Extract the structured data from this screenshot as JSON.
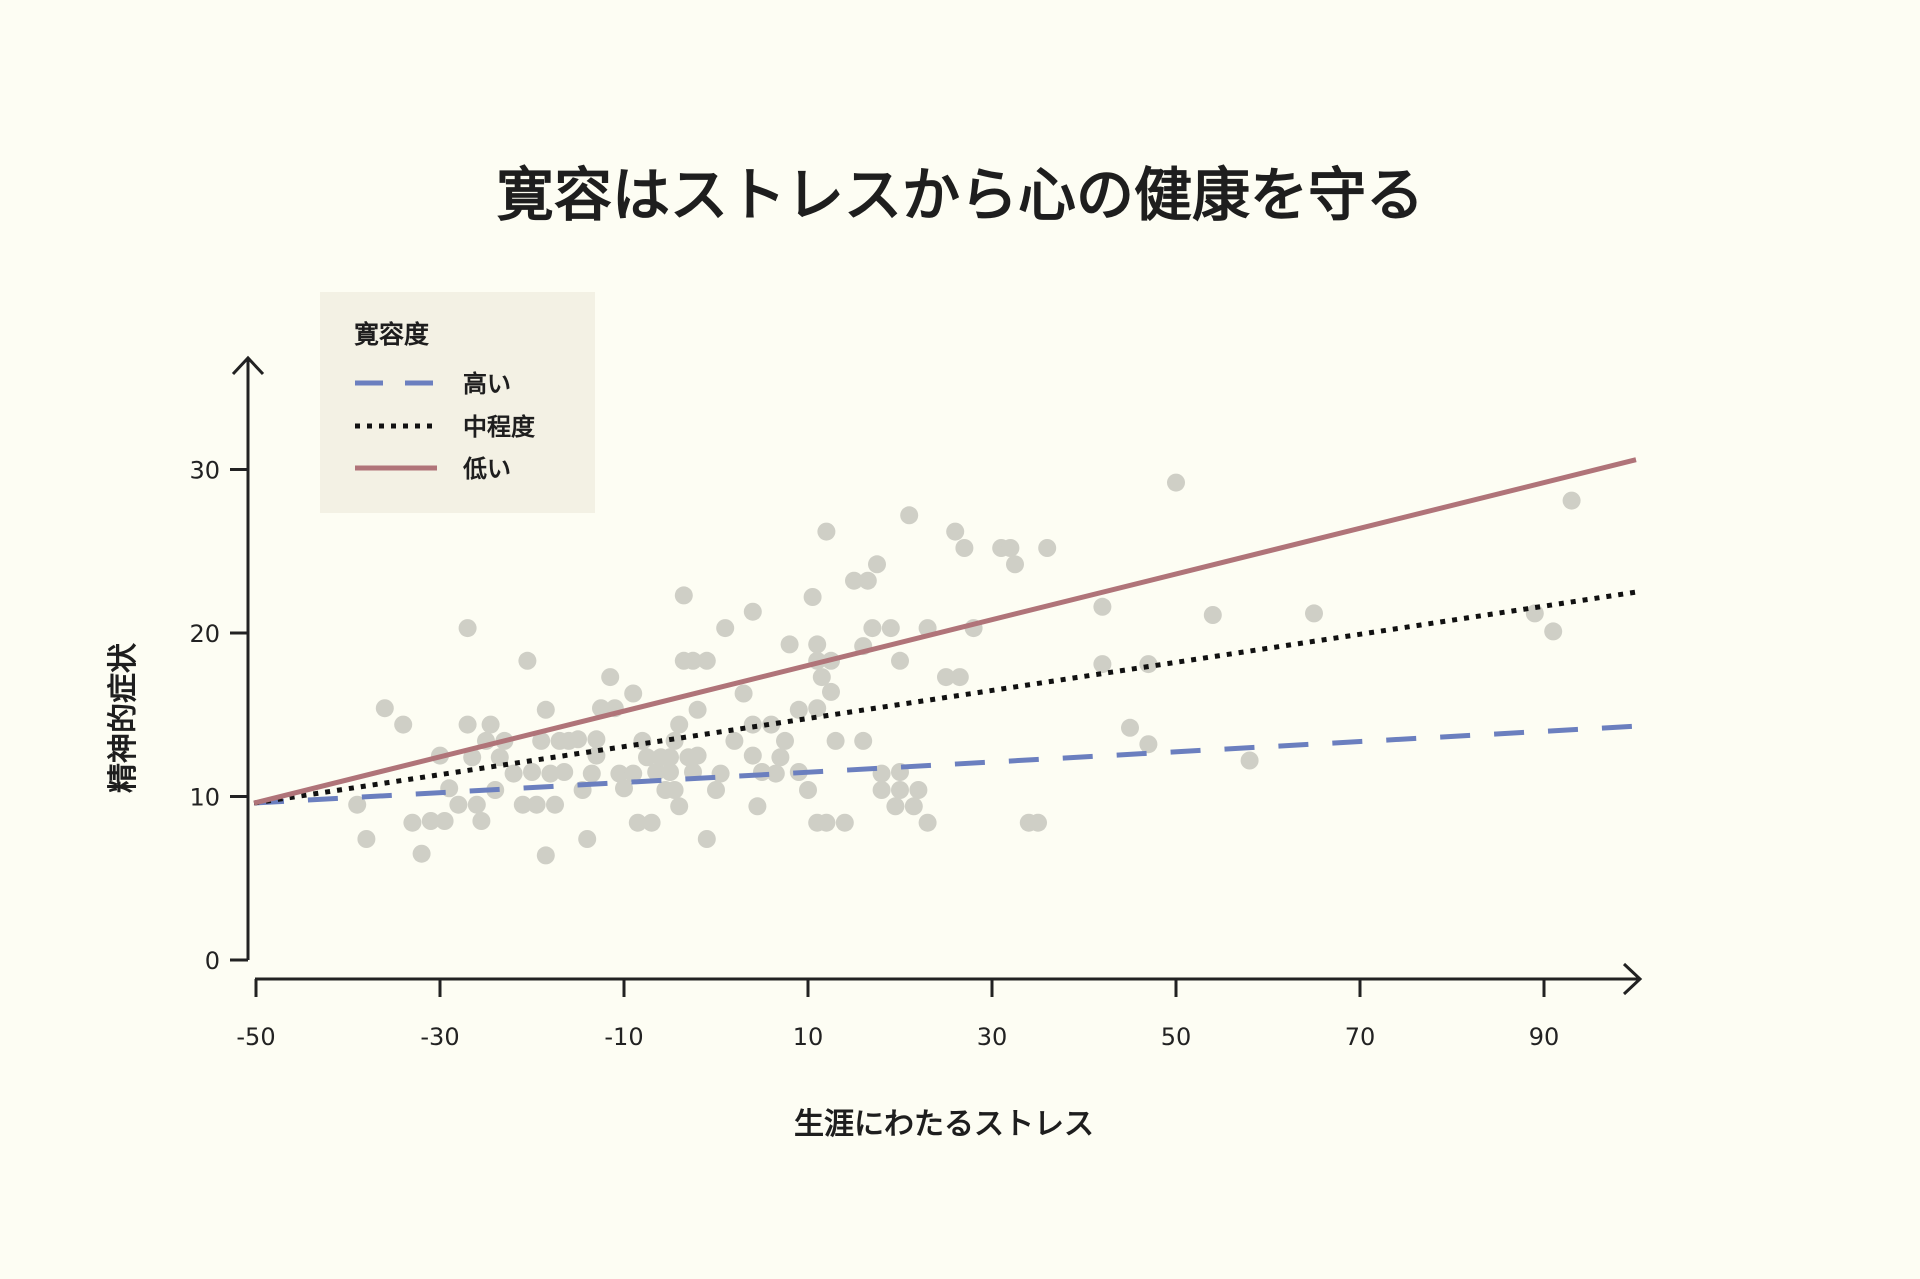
{
  "chart_data": {
    "type": "scatter",
    "title": "寛容はストレスから心の健康を守る",
    "xlabel": "生涯にわたるストレス",
    "ylabel": "精神的症状",
    "xlim": [
      -50,
      100
    ],
    "ylim": [
      0,
      36
    ],
    "xticks": [
      "-50",
      "-30",
      "-10",
      "10",
      "30",
      "50",
      "70",
      "90"
    ],
    "yticks": [
      "0",
      "10",
      "20",
      "30"
    ],
    "grid": false,
    "legend": {
      "title": "寛容度",
      "placement": "top-left",
      "entries": [
        {
          "label": "高い",
          "style": "dashed",
          "color": "#6b7fbf"
        },
        {
          "label": "中程度",
          "style": "dotted",
          "color": "#111111"
        },
        {
          "label": "低い",
          "style": "solid",
          "color": "#b07479"
        }
      ]
    },
    "point_color": "#cfcfc6",
    "lines": [
      {
        "name": "高い",
        "x": [
          -50,
          100
        ],
        "y": [
          9.6,
          14.3
        ],
        "style": "dashed",
        "color": "#6b7fbf"
      },
      {
        "name": "中程度",
        "x": [
          -50,
          100
        ],
        "y": [
          9.6,
          22.5
        ],
        "style": "dotted",
        "color": "#111111"
      },
      {
        "name": "低い",
        "x": [
          -50,
          100
        ],
        "y": [
          9.6,
          30.6
        ],
        "style": "solid",
        "color": "#b07479"
      }
    ],
    "points": [
      [
        -39,
        9.5
      ],
      [
        -38,
        7.4
      ],
      [
        -36,
        15.4
      ],
      [
        -34,
        14.4
      ],
      [
        -33,
        8.4
      ],
      [
        -32,
        6.5
      ],
      [
        -31,
        8.5
      ],
      [
        -30,
        12.5
      ],
      [
        -29.5,
        8.5
      ],
      [
        -29,
        10.5
      ],
      [
        -28,
        9.5
      ],
      [
        -27,
        14.4
      ],
      [
        -27,
        20.3
      ],
      [
        -26.5,
        12.4
      ],
      [
        -26,
        9.5
      ],
      [
        -25.5,
        8.5
      ],
      [
        -25,
        13.4
      ],
      [
        -24.5,
        14.4
      ],
      [
        -24,
        10.4
      ],
      [
        -23.5,
        12.4
      ],
      [
        -23,
        13.4
      ],
      [
        -22,
        11.4
      ],
      [
        -21,
        9.5
      ],
      [
        -20.5,
        18.3
      ],
      [
        -20,
        11.5
      ],
      [
        -19.5,
        9.5
      ],
      [
        -19,
        13.4
      ],
      [
        -18.5,
        15.3
      ],
      [
        -18.5,
        6.4
      ],
      [
        -18,
        11.4
      ],
      [
        -17.5,
        9.5
      ],
      [
        -17,
        13.4
      ],
      [
        -16.5,
        11.5
      ],
      [
        -16,
        13.4
      ],
      [
        -15,
        13.5
      ],
      [
        -14.5,
        10.4
      ],
      [
        -14,
        7.4
      ],
      [
        -13.5,
        11.4
      ],
      [
        -13,
        12.5
      ],
      [
        -13,
        13.5
      ],
      [
        -12.5,
        15.4
      ],
      [
        -11.5,
        17.3
      ],
      [
        -11,
        15.4
      ],
      [
        -10.5,
        11.4
      ],
      [
        -10,
        10.5
      ],
      [
        -9,
        16.3
      ],
      [
        -9,
        11.4
      ],
      [
        -8.5,
        8.4
      ],
      [
        -8,
        13.4
      ],
      [
        -7.5,
        12.4
      ],
      [
        -7,
        8.4
      ],
      [
        -6.5,
        11.5
      ],
      [
        -6,
        12.4
      ],
      [
        -5.5,
        10.4
      ],
      [
        -5,
        12.4
      ],
      [
        -5,
        11.5
      ],
      [
        -4.5,
        10.4
      ],
      [
        -4.5,
        13.4
      ],
      [
        -4,
        9.4
      ],
      [
        -4,
        14.4
      ],
      [
        -3.5,
        22.3
      ],
      [
        -3.5,
        18.3
      ],
      [
        -3,
        12.4
      ],
      [
        -2.5,
        11.5
      ],
      [
        -2.5,
        18.3
      ],
      [
        -2,
        12.5
      ],
      [
        -2,
        15.3
      ],
      [
        -1,
        7.4
      ],
      [
        -1,
        18.3
      ],
      [
        0,
        10.4
      ],
      [
        0.5,
        11.4
      ],
      [
        1,
        20.3
      ],
      [
        2,
        13.4
      ],
      [
        3,
        16.3
      ],
      [
        4,
        21.3
      ],
      [
        4,
        14.4
      ],
      [
        4,
        12.5
      ],
      [
        4.5,
        9.4
      ],
      [
        5,
        11.5
      ],
      [
        6,
        14.4
      ],
      [
        6.5,
        11.4
      ],
      [
        7,
        12.4
      ],
      [
        7.5,
        13.4
      ],
      [
        8,
        19.3
      ],
      [
        9,
        15.3
      ],
      [
        9,
        11.5
      ],
      [
        10,
        10.4
      ],
      [
        10.5,
        22.2
      ],
      [
        11,
        19.3
      ],
      [
        11,
        18.3
      ],
      [
        11,
        15.4
      ],
      [
        11,
        8.4
      ],
      [
        11.5,
        17.3
      ],
      [
        12,
        26.2
      ],
      [
        12,
        8.4
      ],
      [
        12.5,
        16.4
      ],
      [
        12.5,
        18.3
      ],
      [
        13,
        13.4
      ],
      [
        14,
        8.4
      ],
      [
        15,
        23.2
      ],
      [
        16,
        13.4
      ],
      [
        16,
        19.2
      ],
      [
        16.5,
        23.2
      ],
      [
        17,
        20.3
      ],
      [
        17.5,
        24.2
      ],
      [
        18,
        11.4
      ],
      [
        18,
        10.4
      ],
      [
        19,
        20.3
      ],
      [
        19.5,
        9.4
      ],
      [
        20,
        18.3
      ],
      [
        20,
        11.5
      ],
      [
        20,
        10.4
      ],
      [
        21,
        27.2
      ],
      [
        21.5,
        9.4
      ],
      [
        22,
        10.4
      ],
      [
        23,
        20.3
      ],
      [
        23,
        8.4
      ],
      [
        25,
        17.3
      ],
      [
        26,
        26.2
      ],
      [
        26.5,
        17.3
      ],
      [
        27,
        25.2
      ],
      [
        28,
        20.3
      ],
      [
        31,
        25.2
      ],
      [
        32,
        25.2
      ],
      [
        32.5,
        24.2
      ],
      [
        34,
        8.4
      ],
      [
        35,
        8.4
      ],
      [
        36,
        25.2
      ],
      [
        42,
        21.6
      ],
      [
        42,
        18.1
      ],
      [
        45,
        14.2
      ],
      [
        47,
        13.2
      ],
      [
        47,
        18.1
      ],
      [
        50,
        29.2
      ],
      [
        54,
        21.1
      ],
      [
        58,
        12.2
      ],
      [
        65,
        21.2
      ],
      [
        89,
        21.2
      ],
      [
        91,
        20.1
      ],
      [
        93,
        28.1
      ]
    ]
  }
}
